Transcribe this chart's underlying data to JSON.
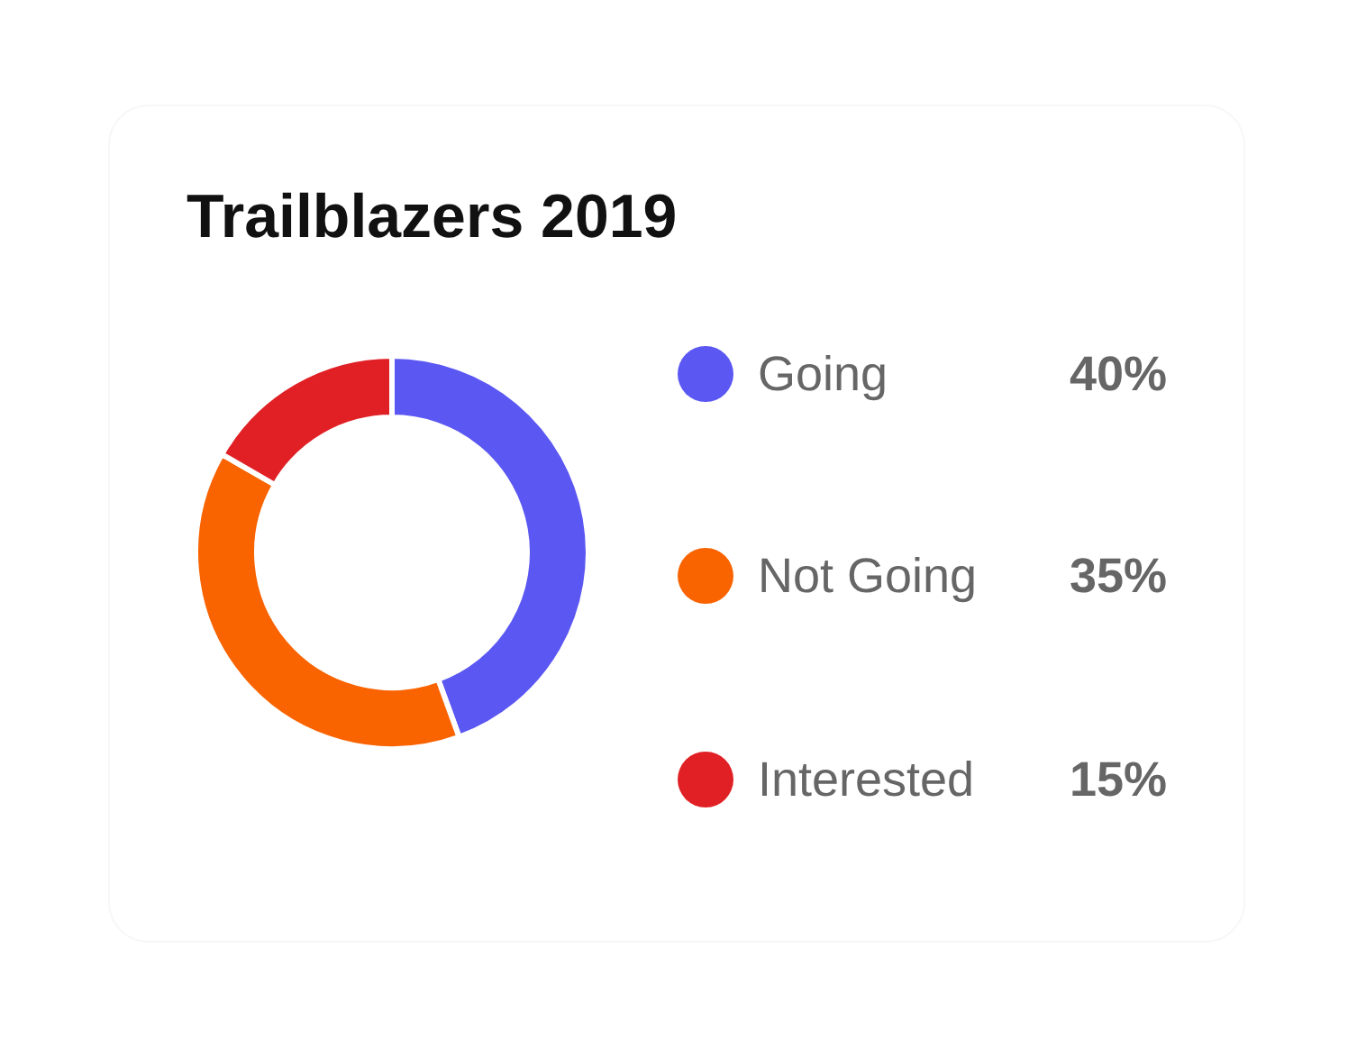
{
  "chart_data": {
    "type": "donut",
    "title": "Trailblazers 2019",
    "categories": [
      "Going",
      "Not Going",
      "Interested"
    ],
    "values": [
      40,
      35,
      15
    ],
    "colors": [
      "#5b57f2",
      "#f96300",
      "#e02025"
    ],
    "value_labels": [
      "40%",
      "35%",
      "15%"
    ],
    "legend": "right"
  }
}
